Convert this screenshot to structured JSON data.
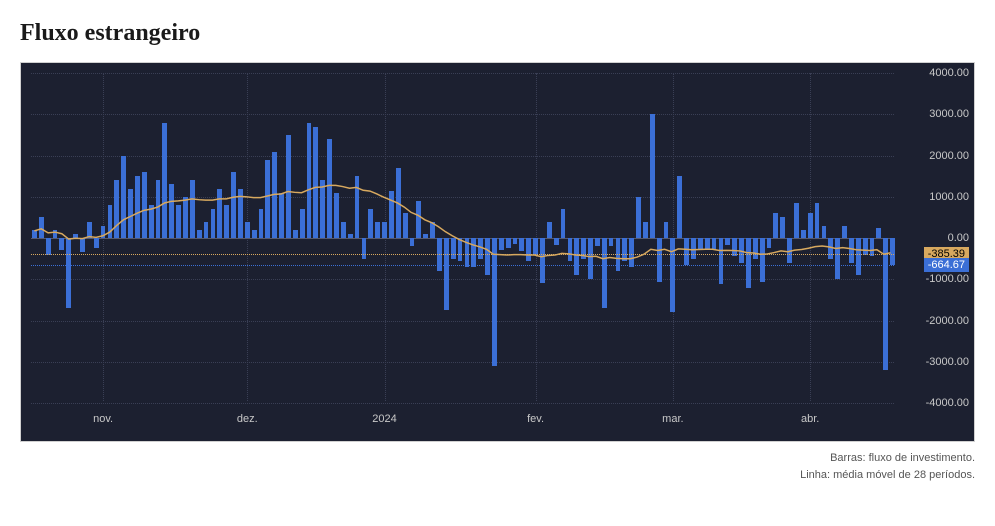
{
  "title": "Fluxo estrangeiro",
  "caption_bars": "Barras: fluxo de investimento.",
  "caption_line": "Linha: média móvel de 28 períodos.",
  "chart": {
    "background_color": "#1c2030",
    "bar_color": "#3b6fd6",
    "ma_color": "#d8a95f",
    "grid_color": "#3a3f55",
    "axis_text_color": "#c8c8c8",
    "ylim": [
      -4000,
      4000
    ],
    "yticks": [
      -4000,
      -3000,
      -2000,
      -1000,
      0,
      1000,
      2000,
      3000,
      4000
    ],
    "ytick_labels": [
      "-4000.00",
      "-3000.00",
      "-2000.00",
      "-1000.00",
      "0.00",
      "1000.00",
      "2000.00",
      "3000.00",
      "4000.00"
    ],
    "xticks": [
      {
        "index": 10,
        "label": "nov."
      },
      {
        "index": 31,
        "label": "dez."
      },
      {
        "index": 51,
        "label": "2024"
      },
      {
        "index": 73,
        "label": "fev."
      },
      {
        "index": 93,
        "label": "mar."
      },
      {
        "index": 113,
        "label": "abr."
      }
    ],
    "indicator_ma": {
      "value": -385.39,
      "label": "-385.39",
      "color": "#d8a95f"
    },
    "indicator_last": {
      "value": -664.67,
      "label": "-664.67",
      "color": "#3b6fd6"
    },
    "bar_values": [
      200,
      500,
      -400,
      200,
      -300,
      -1700,
      100,
      -350,
      400,
      -250,
      300,
      800,
      1400,
      2000,
      1200,
      1500,
      1600,
      800,
      1400,
      2800,
      1300,
      800,
      1000,
      1400,
      200,
      400,
      700,
      1200,
      800,
      1600,
      1200,
      400,
      200,
      700,
      1900,
      2080,
      1100,
      2500,
      200,
      700,
      2800,
      2700,
      1400,
      2400,
      1100,
      400,
      100,
      1500,
      -500,
      700,
      400,
      400,
      1150,
      1700,
      600,
      -200,
      900,
      100,
      400,
      -800,
      -1750,
      -520,
      -550,
      -700,
      -700,
      -500,
      -900,
      -3100,
      -300,
      -250,
      -150,
      -320,
      -550,
      -400,
      -1100,
      380,
      -180,
      700,
      -550,
      -900,
      -500,
      -1000,
      -200,
      -1700,
      -200,
      -800,
      -550,
      -700,
      1000,
      400,
      3000,
      -1060,
      400,
      -1800,
      1500,
      -650,
      -520,
      -260,
      -280,
      -280,
      -1120,
      -180,
      -425,
      -600,
      -1200,
      -500,
      -1060,
      -250,
      600,
      500,
      -600,
      850,
      200,
      600,
      850,
      300,
      -500,
      -1000,
      300,
      -600,
      -900,
      -400,
      -425,
      250,
      -3200,
      -665
    ],
    "ma_values": [
      150,
      200,
      100,
      120,
      80,
      -50,
      -30,
      -40,
      10,
      -10,
      30,
      120,
      280,
      420,
      500,
      580,
      650,
      680,
      730,
      830,
      870,
      880,
      900,
      930,
      910,
      900,
      900,
      930,
      930,
      970,
      990,
      980,
      960,
      960,
      1000,
      1040,
      1050,
      1110,
      1090,
      1080,
      1150,
      1210,
      1220,
      1260,
      1260,
      1230,
      1190,
      1210,
      1140,
      1120,
      1050,
      970,
      900,
      830,
      730,
      600,
      530,
      420,
      350,
      250,
      130,
      30,
      -60,
      -130,
      -190,
      -240,
      -300,
      -420,
      -430,
      -440,
      -430,
      -430,
      -440,
      -440,
      -480,
      -450,
      -440,
      -400,
      -410,
      -440,
      -450,
      -480,
      -470,
      -530,
      -500,
      -520,
      -530,
      -530,
      -490,
      -420,
      -300,
      -330,
      -300,
      -360,
      -290,
      -300,
      -310,
      -305,
      -300,
      -300,
      -330,
      -325,
      -330,
      -340,
      -380,
      -390,
      -420,
      -415,
      -380,
      -340,
      -360,
      -320,
      -305,
      -275,
      -235,
      -220,
      -240,
      -280,
      -260,
      -280,
      -310,
      -320,
      -330,
      -310,
      -420,
      -385.39
    ]
  }
}
